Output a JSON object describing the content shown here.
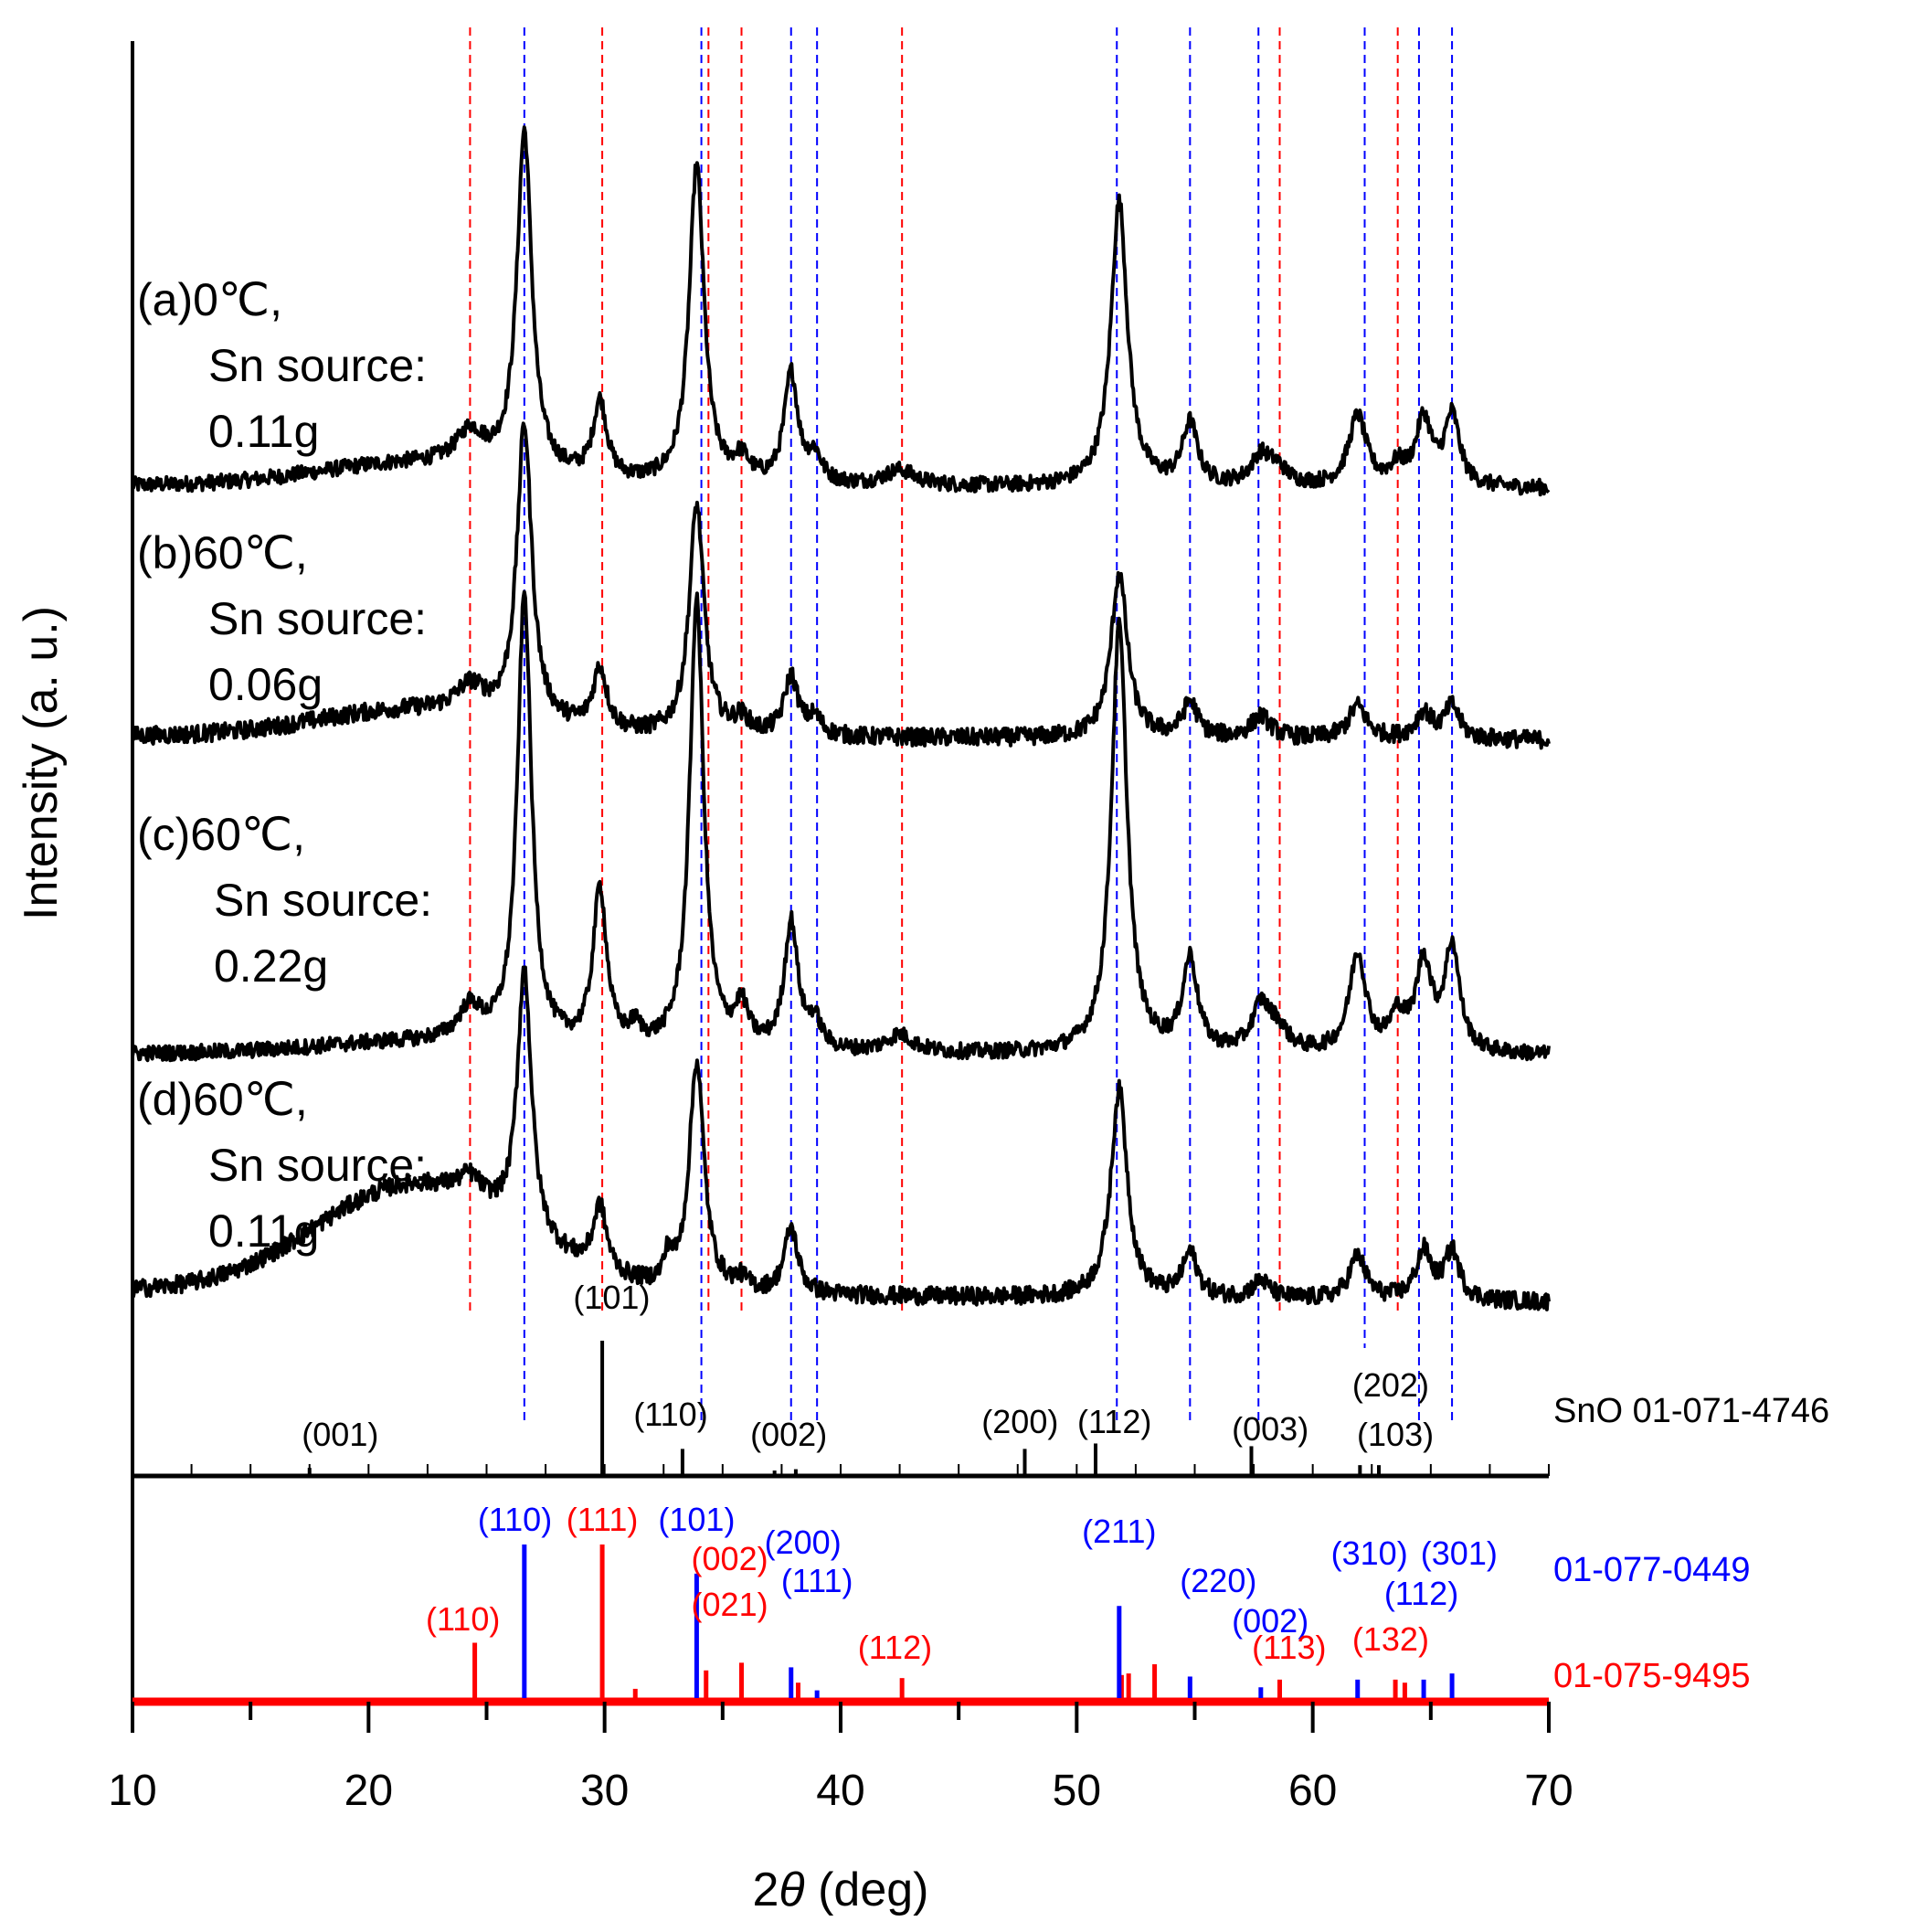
{
  "chart_data": {
    "type": "line",
    "title": "",
    "xlabel": "2θ (deg)",
    "xlabel_prefix": "2",
    "xlabel_theta": "θ",
    "xlabel_suffix": " (deg)",
    "ylabel": "Intensity (a. u.)",
    "xlim": [
      10,
      70
    ],
    "x_ticks": [
      10,
      20,
      30,
      40,
      50,
      60,
      70
    ],
    "x_tick_labels": [
      "10",
      "20",
      "30",
      "40",
      "50",
      "60",
      "70"
    ],
    "grid": false,
    "colors": {
      "black": "#000000",
      "red": "#ff0000",
      "blue": "#0000ff"
    },
    "series": [
      {
        "name": "(a)0℃, Sn source: 0.11g",
        "label_lines": [
          "(a)0℃,",
          "Sn source:",
          "0.11g"
        ],
        "baseline": 0.0,
        "background_curve": 0.1,
        "noise": 0.035,
        "peaks": [
          [
            24.3,
            0.15,
            0.7
          ],
          [
            26.6,
            1.55,
            0.38
          ],
          [
            29.8,
            0.35,
            0.35
          ],
          [
            33.9,
            1.45,
            0.38
          ],
          [
            35.8,
            0.1,
            0.4
          ],
          [
            37.9,
            0.5,
            0.35
          ],
          [
            38.9,
            0.12,
            0.35
          ],
          [
            42.5,
            0.07,
            0.8
          ],
          [
            51.8,
            1.3,
            0.42
          ],
          [
            54.8,
            0.28,
            0.38
          ],
          [
            57.8,
            0.13,
            0.5
          ],
          [
            58.5,
            0.07,
            0.5
          ],
          [
            61.9,
            0.32,
            0.45
          ],
          [
            63.6,
            0.08,
            0.4
          ],
          [
            64.7,
            0.3,
            0.4
          ],
          [
            65.9,
            0.32,
            0.38
          ]
        ]
      },
      {
        "name": "(b)60℃, Sn source: 0.06g",
        "label_lines": [
          "(b)60℃,",
          "Sn source:",
          "0.06g"
        ],
        "baseline": 0.0,
        "background_curve": 0.12,
        "noise": 0.04,
        "peaks": [
          [
            24.3,
            0.12,
            0.7
          ],
          [
            26.6,
            1.35,
            0.38
          ],
          [
            29.8,
            0.28,
            0.35
          ],
          [
            33.9,
            1.05,
            0.38
          ],
          [
            35.8,
            0.07,
            0.4
          ],
          [
            37.9,
            0.27,
            0.35
          ],
          [
            38.9,
            0.08,
            0.35
          ],
          [
            51.8,
            0.75,
            0.42
          ],
          [
            54.8,
            0.16,
            0.38
          ],
          [
            57.8,
            0.1,
            0.5
          ],
          [
            61.9,
            0.15,
            0.45
          ],
          [
            64.7,
            0.12,
            0.4
          ],
          [
            65.9,
            0.15,
            0.38
          ]
        ]
      },
      {
        "name": "(c)60℃, Sn source: 0.22g",
        "label_lines": [
          "(c)60℃,",
          "Sn source:",
          "0.22g"
        ],
        "baseline": 0.0,
        "background_curve": 0.05,
        "noise": 0.035,
        "peaks": [
          [
            24.3,
            0.15,
            0.6
          ],
          [
            26.6,
            2.05,
            0.36
          ],
          [
            29.8,
            0.72,
            0.35
          ],
          [
            31.3,
            0.08,
            0.3
          ],
          [
            33.9,
            2.05,
            0.36
          ],
          [
            35.8,
            0.18,
            0.35
          ],
          [
            37.9,
            0.58,
            0.35
          ],
          [
            38.9,
            0.12,
            0.35
          ],
          [
            42.5,
            0.08,
            0.7
          ],
          [
            51.8,
            1.95,
            0.4
          ],
          [
            54.8,
            0.42,
            0.38
          ],
          [
            57.8,
            0.2,
            0.45
          ],
          [
            58.5,
            0.1,
            0.5
          ],
          [
            61.9,
            0.45,
            0.42
          ],
          [
            63.6,
            0.15,
            0.4
          ],
          [
            64.7,
            0.4,
            0.4
          ],
          [
            65.9,
            0.48,
            0.38
          ]
        ]
      },
      {
        "name": "(d)60℃, Sn source: 0.11g",
        "label_lines": [
          "(d)60℃,",
          "Sn source:",
          "0.11g"
        ],
        "baseline": 0.0,
        "background_curve": 0.35,
        "noise": 0.04,
        "peaks": [
          [
            24.3,
            0.1,
            0.6
          ],
          [
            26.6,
            1.2,
            0.36
          ],
          [
            29.8,
            0.3,
            0.35
          ],
          [
            32.7,
            0.12,
            0.2
          ],
          [
            33.9,
            1.05,
            0.38
          ],
          [
            35.8,
            0.05,
            0.35
          ],
          [
            37.9,
            0.3,
            0.35
          ],
          [
            51.8,
            0.95,
            0.42
          ],
          [
            54.8,
            0.2,
            0.38
          ],
          [
            57.8,
            0.08,
            0.45
          ],
          [
            61.9,
            0.2,
            0.42
          ],
          [
            64.7,
            0.22,
            0.4
          ],
          [
            65.9,
            0.22,
            0.38
          ]
        ]
      }
    ],
    "reference_patterns": [
      {
        "name": "SnO 01-071-4746",
        "label": "SnO 01-071-4746",
        "color": "#000000",
        "lines": [
          {
            "x": 17.5,
            "h": 0.06
          },
          {
            "x": 29.9,
            "h": 1.0
          },
          {
            "x": 33.3,
            "h": 0.2
          },
          {
            "x": 37.2,
            "h": 0.04
          },
          {
            "x": 38.1,
            "h": 0.05
          },
          {
            "x": 47.8,
            "h": 0.2
          },
          {
            "x": 50.8,
            "h": 0.24
          },
          {
            "x": 57.4,
            "h": 0.22
          },
          {
            "x": 62.0,
            "h": 0.08
          },
          {
            "x": 62.8,
            "h": 0.08
          }
        ],
        "hkl": [
          {
            "x": 18.8,
            "label": "(001)"
          },
          {
            "x": 30.3,
            "label": "(101)"
          },
          {
            "x": 32.8,
            "label": "(110)"
          },
          {
            "x": 37.8,
            "label": "(002)"
          },
          {
            "x": 47.6,
            "label": "(200)"
          },
          {
            "x": 51.6,
            "label": "(112)"
          },
          {
            "x": 58.2,
            "label": "(003)"
          },
          {
            "x": 63.3,
            "label": "(202)"
          },
          {
            "x": 63.5,
            "label": "(103)"
          }
        ]
      },
      {
        "name": "01-077-0449",
        "label": "01-077-0449",
        "color": "#0000ff",
        "lines": [
          {
            "x": 26.6,
            "h": 1.0
          },
          {
            "x": 33.9,
            "h": 0.81
          },
          {
            "x": 37.9,
            "h": 0.2
          },
          {
            "x": 39.0,
            "h": 0.05
          },
          {
            "x": 51.8,
            "h": 0.6
          },
          {
            "x": 54.8,
            "h": 0.14
          },
          {
            "x": 57.8,
            "h": 0.07
          },
          {
            "x": 61.9,
            "h": 0.12
          },
          {
            "x": 64.7,
            "h": 0.12
          },
          {
            "x": 65.9,
            "h": 0.16
          }
        ],
        "hkl": [
          {
            "x": 26.2,
            "label": "(110)"
          },
          {
            "x": 33.9,
            "label": "(101)"
          },
          {
            "x": 38.4,
            "label": "(200)"
          },
          {
            "x": 39.0,
            "label": "(111)"
          },
          {
            "x": 51.8,
            "label": "(211)"
          },
          {
            "x": 56.0,
            "label": "(220)"
          },
          {
            "x": 58.2,
            "label": "(002)"
          },
          {
            "x": 62.4,
            "label": "(310)"
          },
          {
            "x": 64.6,
            "label": "(112)"
          },
          {
            "x": 66.2,
            "label": "(301)"
          }
        ]
      },
      {
        "name": "01-075-9495",
        "label": "01-075-9495",
        "color": "#ff0000",
        "lines": [
          {
            "x": 24.5,
            "h": 0.36
          },
          {
            "x": 29.9,
            "h": 1.0
          },
          {
            "x": 31.3,
            "h": 0.06
          },
          {
            "x": 34.3,
            "h": 0.18
          },
          {
            "x": 35.8,
            "h": 0.23
          },
          {
            "x": 38.2,
            "h": 0.1
          },
          {
            "x": 42.6,
            "h": 0.13
          },
          {
            "x": 51.9,
            "h": 0.15
          },
          {
            "x": 52.2,
            "h": 0.16
          },
          {
            "x": 53.3,
            "h": 0.22
          },
          {
            "x": 58.6,
            "h": 0.12
          },
          {
            "x": 63.5,
            "h": 0.12
          },
          {
            "x": 63.9,
            "h": 0.1
          }
        ],
        "hkl": [
          {
            "x": 24.0,
            "label": "(110)"
          },
          {
            "x": 29.9,
            "label": "(111)"
          },
          {
            "x": 35.3,
            "label": "(002)"
          },
          {
            "x": 35.3,
            "label": "(021)"
          },
          {
            "x": 42.3,
            "label": "(112)"
          },
          {
            "x": 59.0,
            "label": "(113)"
          },
          {
            "x": 63.3,
            "label": "(132)"
          }
        ]
      }
    ],
    "guide_lines": {
      "red": [
        24.3,
        29.9,
        34.4,
        35.8,
        42.6,
        58.6,
        63.6
      ],
      "blue": [
        26.6,
        34.1,
        37.9,
        39.0,
        51.7,
        54.8,
        57.7,
        62.2,
        64.5,
        65.9
      ]
    }
  }
}
